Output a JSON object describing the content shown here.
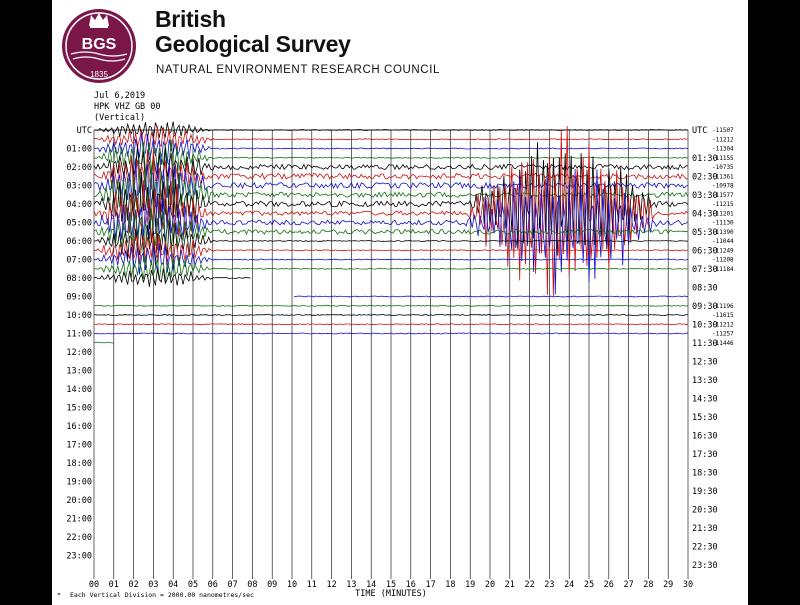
{
  "header": {
    "org_name_line1": "British",
    "org_name_line2": "Geological Survey",
    "council": "NATURAL ENVIRONMENT RESEARCH COUNCIL",
    "logo_text": "BGS",
    "logo_year": "1835",
    "date": "Jul 6,2019",
    "station": "HPK VHZ GB 00",
    "component": "(Vertical)"
  },
  "colors": {
    "trace_cycle": [
      "#000000",
      "#d01010",
      "#1010d0",
      "#107010"
    ],
    "grid": "#000000",
    "logo_maroon": "#7a1748",
    "burst_highlight": "#cc00cc"
  },
  "chart_data": {
    "type": "line",
    "title": "",
    "xlabel": "TIME (MINUTES)",
    "x_ticks": [
      "00",
      "01",
      "02",
      "03",
      "04",
      "05",
      "06",
      "07",
      "08",
      "09",
      "10",
      "11",
      "12",
      "13",
      "14",
      "15",
      "16",
      "17",
      "18",
      "19",
      "20",
      "21",
      "22",
      "23",
      "24",
      "25",
      "26",
      "27",
      "28",
      "29",
      "30"
    ],
    "xlim": [
      0,
      30
    ],
    "left_labels": [
      "UTC",
      "01:00",
      "02:00",
      "03:00",
      "04:00",
      "05:00",
      "06:00",
      "07:00",
      "08:00",
      "09:00",
      "10:00",
      "11:00",
      "12:00",
      "13:00",
      "14:00",
      "15:00",
      "16:00",
      "17:00",
      "18:00",
      "19:00",
      "20:00",
      "21:00",
      "22:00",
      "23:00"
    ],
    "right_labels": [
      "UTC",
      "01:30",
      "02:30",
      "03:30",
      "04:30",
      "05:30",
      "06:30",
      "07:30",
      "08:30",
      "09:30",
      "10:30",
      "11:30",
      "12:30",
      "13:30",
      "14:30",
      "15:30",
      "16:30",
      "17:30",
      "18:30",
      "19:30",
      "20:30",
      "21:30",
      "22:30",
      "23:30"
    ],
    "trace_offsets": [
      {
        "row": 0,
        "half": 0,
        "value": "-11507"
      },
      {
        "row": 0,
        "half": 1,
        "value": "-11212"
      },
      {
        "row": 1,
        "half": 0,
        "value": "-11304"
      },
      {
        "row": 1,
        "half": 1,
        "value": "-11155"
      },
      {
        "row": 2,
        "half": 0,
        "value": "-10735"
      },
      {
        "row": 2,
        "half": 1,
        "value": "-11361"
      },
      {
        "row": 3,
        "half": 0,
        "value": "-10978"
      },
      {
        "row": 3,
        "half": 1,
        "value": "-11577"
      },
      {
        "row": 4,
        "half": 0,
        "value": "-11215"
      },
      {
        "row": 4,
        "half": 1,
        "value": "-11201"
      },
      {
        "row": 5,
        "half": 0,
        "value": "-11130"
      },
      {
        "row": 5,
        "half": 1,
        "value": "-11390"
      },
      {
        "row": 6,
        "half": 0,
        "value": "-11044"
      },
      {
        "row": 6,
        "half": 1,
        "value": "-11249"
      },
      {
        "row": 7,
        "half": 0,
        "value": "-11208"
      },
      {
        "row": 7,
        "half": 1,
        "value": "-11184"
      },
      {
        "row": 9,
        "half": 1,
        "value": "-11196"
      },
      {
        "row": 10,
        "half": 0,
        "value": "-11615"
      },
      {
        "row": 10,
        "half": 1,
        "value": "-11212"
      },
      {
        "row": 11,
        "half": 0,
        "value": "-11257"
      },
      {
        "row": 11,
        "half": 1,
        "value": "-11446"
      }
    ],
    "recorded_until": {
      "hour": 11,
      "minute": 31
    },
    "data_gap": {
      "start_hour": 8,
      "start_minute": 8,
      "end_hour": 9,
      "end_minute": 10
    },
    "events": [
      {
        "name": "",
        "start_minute": 0.0,
        "end_minute": 7.0,
        "amplitude_divisions": 4.5,
        "rows": [
          0,
          8
        ]
      },
      {
        "name": "",
        "start_minute": 18.7,
        "end_minute": 30.0,
        "amplitude_divisions": 11.0,
        "rows": [
          4,
          5
        ]
      }
    ],
    "background_noise": "high from 02:00 to 05:30, low elsewhere",
    "grid": true,
    "vertical_division": "Each Vertical Division = 2000.00 nanometres/sec"
  }
}
